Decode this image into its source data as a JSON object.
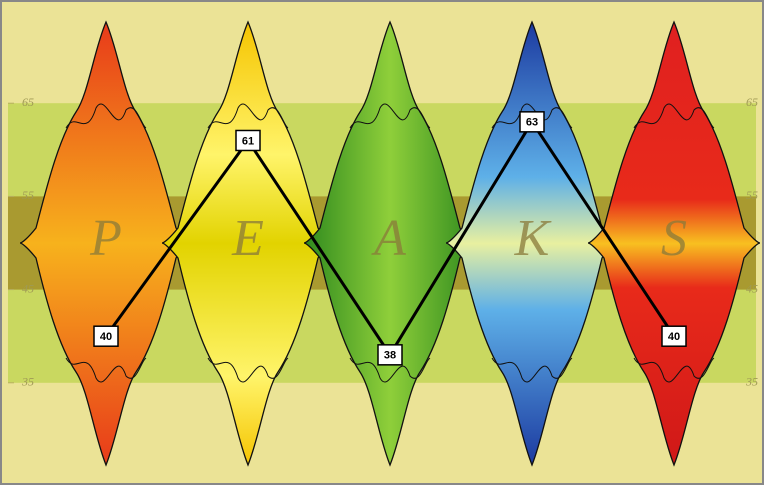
{
  "chart_data": {
    "type": "line",
    "categories": [
      "P",
      "E",
      "A",
      "K",
      "S"
    ],
    "values": [
      40,
      61,
      38,
      63,
      40
    ],
    "color": "#000000",
    "ylim": [
      25,
      75
    ],
    "yticks": [
      35,
      45,
      55,
      65
    ]
  }
}
